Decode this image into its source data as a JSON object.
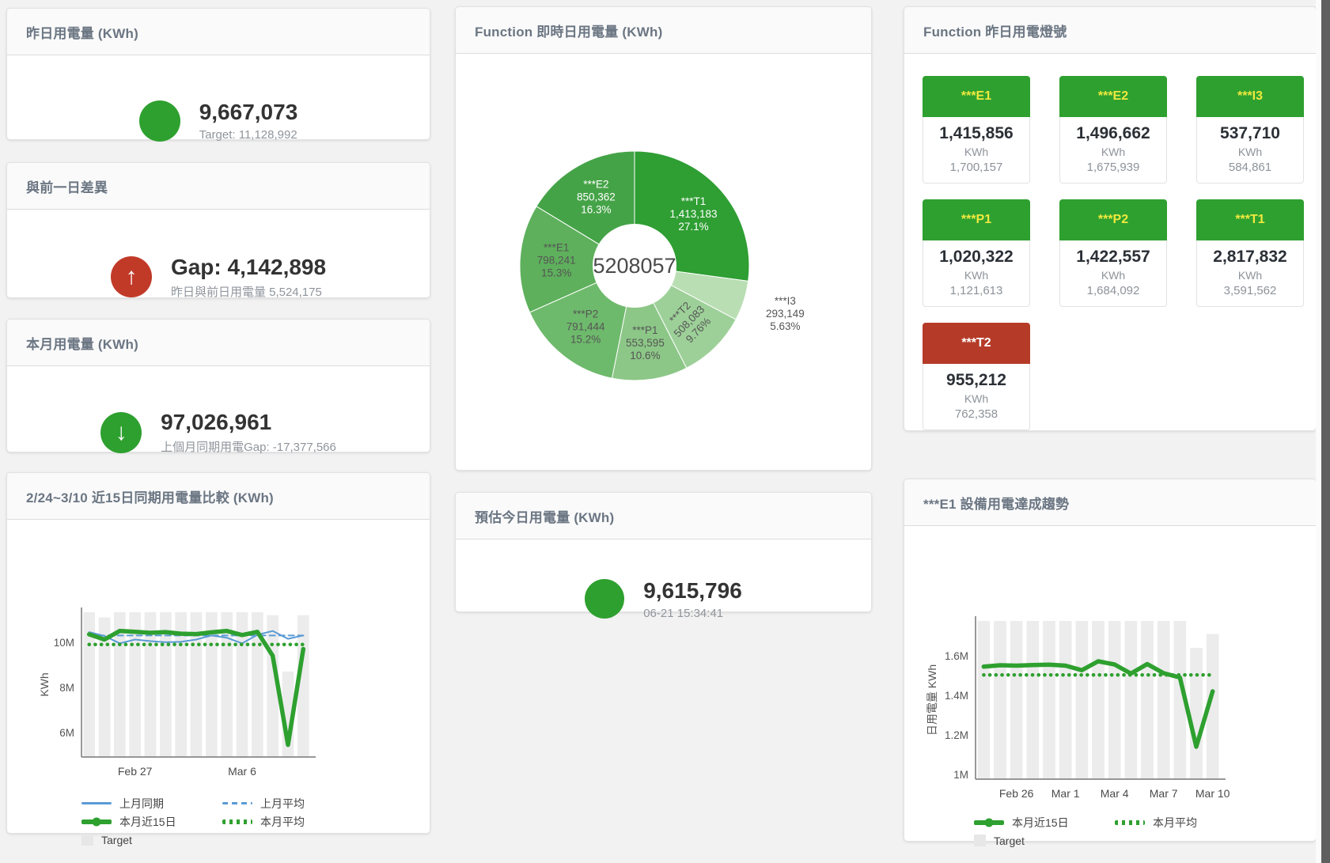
{
  "page": {
    "background": "#f2f2f2"
  },
  "icons": {
    "arrow_up_glyph": "↑",
    "arrow_down_glyph": "↓"
  },
  "colors": {
    "green": "#2ea02f",
    "red": "#c13a28",
    "blue": "#5b9bd5",
    "target_bar": "#ececec"
  },
  "cards": {
    "yesterday": {
      "title": "昨日用電量 (KWh)",
      "value": "9,667,073",
      "subtitle": "Target: 11,128,992"
    },
    "gap": {
      "title": "與前一日差異",
      "value": "Gap: 4,142,898",
      "subtitle": "昨日與前日用電量 5,524,175"
    },
    "month": {
      "title": "本月用電量 (KWh)",
      "value": "97,026,961",
      "subtitle": "上個月同期用電Gap: -17,377,566"
    },
    "estimate": {
      "title": "預估今日用電量 (KWh)",
      "value": "9,615,796",
      "subtitle": "06-21 15:34:41"
    }
  },
  "donut_card": {
    "title": "Function 即時日用電量 (KWh)"
  },
  "compare_card": {
    "title": "2/24~3/10 近15日同期用電量比較 (KWh)",
    "legend": [
      {
        "label": "上月同期",
        "kind": "line",
        "color": "#5b9bd5",
        "thick": false,
        "dash": false
      },
      {
        "label": "上月平均",
        "kind": "line",
        "color": "#5b9bd5",
        "thick": false,
        "dash": true
      },
      {
        "label": "本月近15日",
        "kind": "line",
        "color": "#2ea02f",
        "thick": true,
        "dash": false
      },
      {
        "label": "本月平均",
        "kind": "line",
        "color": "#2ea02f",
        "thick": true,
        "dash": true
      },
      {
        "label": "Target",
        "kind": "square",
        "color": "#e7e7e7"
      }
    ]
  },
  "lights_card": {
    "title": "Function 昨日用電燈號",
    "colors": {
      "green": "#2ea02f",
      "red": "#b53b28",
      "label_on_green": "#efe93f",
      "label_on_red": "#ffffff"
    },
    "tiles": [
      {
        "label": "***E1",
        "value": "1,415,856",
        "unit": "KWh",
        "target": "1,700,157",
        "status": "green"
      },
      {
        "label": "***E2",
        "value": "1,496,662",
        "unit": "KWh",
        "target": "1,675,939",
        "status": "green"
      },
      {
        "label": "***I3",
        "value": "537,710",
        "unit": "KWh",
        "target": "584,861",
        "status": "green"
      },
      {
        "label": "***P1",
        "value": "1,020,322",
        "unit": "KWh",
        "target": "1,121,613",
        "status": "green"
      },
      {
        "label": "***P2",
        "value": "1,422,557",
        "unit": "KWh",
        "target": "1,684,092",
        "status": "green"
      },
      {
        "label": "***T1",
        "value": "2,817,832",
        "unit": "KWh",
        "target": "3,591,562",
        "status": "green"
      },
      {
        "label": "***T2",
        "value": "955,212",
        "unit": "KWh",
        "target": "762,358",
        "status": "red"
      }
    ]
  },
  "trend_card": {
    "title": "***E1 設備用電達成趨勢",
    "legend": [
      {
        "label": "本月近15日",
        "kind": "line",
        "color": "#2ea02f",
        "thick": true,
        "dash": false
      },
      {
        "label": "本月平均",
        "kind": "line",
        "color": "#2ea02f",
        "thick": true,
        "dash": true
      },
      {
        "label": "Target",
        "kind": "square",
        "color": "#e7e7e7"
      }
    ]
  },
  "chart_data": [
    {
      "type": "pie",
      "name": "realtime-donut",
      "title": "Function 即時日用電量 (KWh)",
      "center_total": "5208057",
      "slices": [
        {
          "name": "***T1",
          "value": 1413183,
          "value_label": "1,413,183",
          "pct_label": "27.1%",
          "color": "#2f9e33",
          "label_color": "#ffffff"
        },
        {
          "name": "***I3",
          "value": 293149,
          "value_label": "293,149",
          "pct_label": "5.63%",
          "color": "#b9deb3",
          "label_color": "#555555",
          "outside": true
        },
        {
          "name": "***T2",
          "value": 508083,
          "value_label": "508,083",
          "pct_label": "9.76%",
          "color": "#9dd098",
          "label_color": "#555555",
          "label_rotate": -46
        },
        {
          "name": "***P1",
          "value": 553595,
          "value_label": "553,595",
          "pct_label": "10.6%",
          "color": "#8cc787",
          "label_color": "#555555"
        },
        {
          "name": "***P2",
          "value": 791444,
          "value_label": "791,444",
          "pct_label": "15.2%",
          "color": "#6eba6c",
          "label_color": "#555555"
        },
        {
          "name": "***E1",
          "value": 798241,
          "value_label": "798,241",
          "pct_label": "15.3%",
          "color": "#5eb05c",
          "label_color": "#555555"
        },
        {
          "name": "***E2",
          "value": 850362,
          "value_label": "850,362",
          "pct_label": "16.3%",
          "color": "#45a347",
          "label_color": "#ffffff"
        }
      ]
    },
    {
      "type": "line",
      "name": "compare-chart",
      "title": "2/24~3/10 近15日同期用電量比較 (KWh)",
      "ylabel": "KWh",
      "unit": "M KWh",
      "ylim": [
        4.91,
        11.33
      ],
      "yticks": [
        {
          "v": 6,
          "label": "6M"
        },
        {
          "v": 8,
          "label": "8M"
        },
        {
          "v": 10,
          "label": "10M"
        }
      ],
      "xticks": [
        {
          "i": 3,
          "label": "Feb 27"
        },
        {
          "i": 10,
          "label": "Mar 6"
        }
      ],
      "x_range": "2/24 - 3/10 (15 days)",
      "target": {
        "name": "Target",
        "color": "#ececec",
        "values": [
          11.33,
          11.1,
          11.33,
          11.33,
          11.33,
          11.33,
          11.33,
          11.33,
          11.33,
          11.33,
          11.33,
          11.33,
          11.2,
          8.7,
          11.2
        ]
      },
      "series": [
        {
          "name": "上月同期",
          "color": "#5b9bd5",
          "width": 2,
          "z": 1,
          "values": [
            10.45,
            10.28,
            9.95,
            10.12,
            10.05,
            10.0,
            10.02,
            10.12,
            10.3,
            10.2,
            9.95,
            10.33,
            10.5,
            10.15,
            10.3
          ]
        },
        {
          "name": "上月平均",
          "color": "#5b9bd5",
          "width": 2,
          "dash": "7 5",
          "z": 2,
          "values": [
            10.3,
            10.3,
            10.3,
            10.3,
            10.3,
            10.3,
            10.3,
            10.3,
            10.3,
            10.3,
            10.3,
            10.3,
            10.3,
            10.3,
            10.3
          ]
        },
        {
          "name": "本月近15日",
          "color": "#2ea02f",
          "width": 5.5,
          "z": 4,
          "values": [
            10.35,
            10.12,
            10.5,
            10.46,
            10.42,
            10.45,
            10.38,
            10.36,
            10.44,
            10.5,
            10.32,
            10.46,
            9.4,
            5.45,
            9.7
          ]
        },
        {
          "name": "本月平均",
          "color": "#2ea02f",
          "width": 4.5,
          "dash": "0.2 7.5",
          "z": 3,
          "values": [
            9.9,
            9.9,
            9.9,
            9.9,
            9.9,
            9.9,
            9.9,
            9.9,
            9.9,
            9.9,
            9.9,
            9.9,
            9.9,
            9.9,
            9.9
          ]
        }
      ]
    },
    {
      "type": "line",
      "name": "e1-trend-chart",
      "title": "***E1 設備用電達成趨勢",
      "ylabel": "日用電量 KWh",
      "unit": "M KWh",
      "ylim": [
        0.976,
        1.776
      ],
      "yticks": [
        {
          "v": 1,
          "label": "1M"
        },
        {
          "v": 1.2,
          "label": "1.2M"
        },
        {
          "v": 1.4,
          "label": "1.4M"
        },
        {
          "v": 1.6,
          "label": "1.6M"
        }
      ],
      "xticks": [
        {
          "i": 2,
          "label": "Feb 26"
        },
        {
          "i": 5,
          "label": "Mar 1"
        },
        {
          "i": 8,
          "label": "Mar 4"
        },
        {
          "i": 11,
          "label": "Mar 7"
        },
        {
          "i": 14,
          "label": "Mar 10"
        }
      ],
      "x_range": "2/24 - 3/10 (15 days)",
      "target": {
        "name": "Target",
        "color": "#ececec",
        "values": [
          1.776,
          1.776,
          1.776,
          1.776,
          1.776,
          1.776,
          1.776,
          1.776,
          1.776,
          1.776,
          1.776,
          1.776,
          1.776,
          1.64,
          1.71
        ]
      },
      "series": [
        {
          "name": "本月近15日",
          "color": "#2ea02f",
          "width": 5.5,
          "z": 2,
          "values": [
            1.545,
            1.552,
            1.55,
            1.553,
            1.555,
            1.55,
            1.527,
            1.572,
            1.556,
            1.51,
            1.558,
            1.512,
            1.49,
            1.14,
            1.42
          ]
        },
        {
          "name": "本月平均",
          "color": "#2ea02f",
          "width": 4.5,
          "dash": "0.2 7.5",
          "z": 1,
          "values": [
            1.503,
            1.503,
            1.503,
            1.503,
            1.503,
            1.503,
            1.503,
            1.503,
            1.503,
            1.503,
            1.503,
            1.503,
            1.503,
            1.503,
            1.503
          ]
        }
      ]
    }
  ]
}
